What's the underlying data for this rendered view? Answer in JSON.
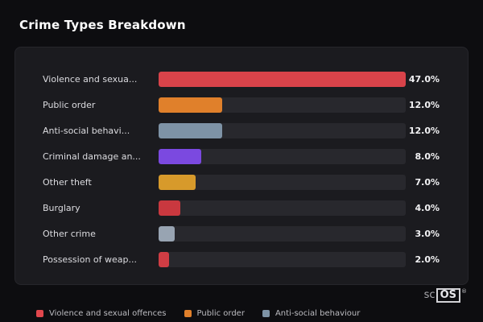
{
  "page": {
    "title": "Crime Types Breakdown"
  },
  "chart_data": {
    "type": "bar",
    "orientation": "horizontal",
    "title": "Crime Types Breakdown",
    "categories": [
      "Violence and sexua...",
      "Public order",
      "Anti-social behavi...",
      "Criminal damage an...",
      "Other theft",
      "Burglary",
      "Other crime",
      "Possession of weap..."
    ],
    "values": [
      47.0,
      12.0,
      12.0,
      8.0,
      7.0,
      4.0,
      3.0,
      2.0
    ],
    "value_labels": [
      "47.0%",
      "12.0%",
      "12.0%",
      "8.0%",
      "7.0%",
      "4.0%",
      "3.0%",
      "2.0%"
    ],
    "bar_colors": [
      "#d8434a",
      "#e0802b",
      "#7e93a6",
      "#7b49e0",
      "#d79a2b",
      "#c9383f",
      "#98a4b2",
      "#cf3d44"
    ],
    "max_value": 47.0,
    "track_color": "#28282d",
    "grid": false,
    "legend_position": "bottom",
    "legend": [
      {
        "label": "Violence and sexual offences",
        "color": "#e1474d"
      },
      {
        "label": "Public order",
        "color": "#e0802b"
      },
      {
        "label": "Anti-social behaviour",
        "color": "#7e93a6"
      }
    ]
  },
  "branding": {
    "prefix": "sc",
    "box": "OS",
    "reg": "®"
  }
}
